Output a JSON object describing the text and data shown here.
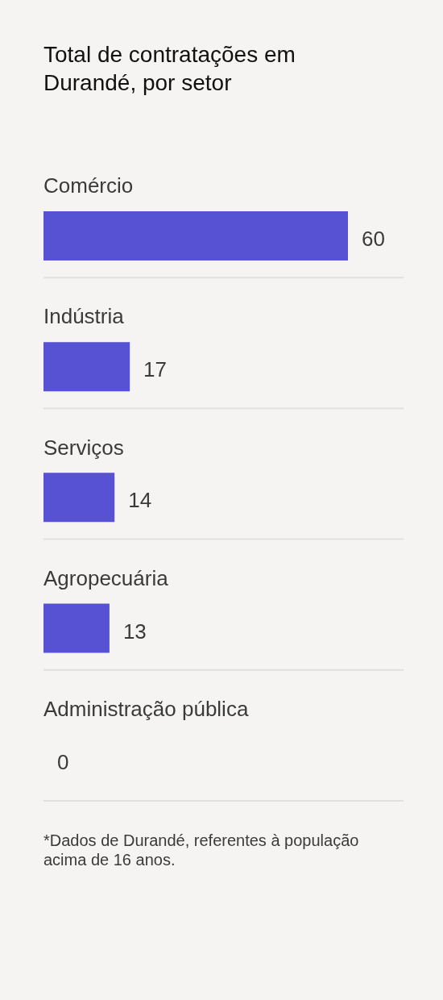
{
  "chart_data": {
    "type": "bar",
    "orientation": "horizontal",
    "title": "Total de contratações em Durandé, por setor",
    "categories": [
      "Comércio",
      "Indústria",
      "Serviços",
      "Agropecuária",
      "Administração pública"
    ],
    "values": [
      60,
      17,
      14,
      13,
      0
    ],
    "color": "#5751d4",
    "data_labels": true,
    "grid": "y",
    "annotations": [
      "*Dados de Durandé, referentes à população acima de 16 anos."
    ]
  }
}
